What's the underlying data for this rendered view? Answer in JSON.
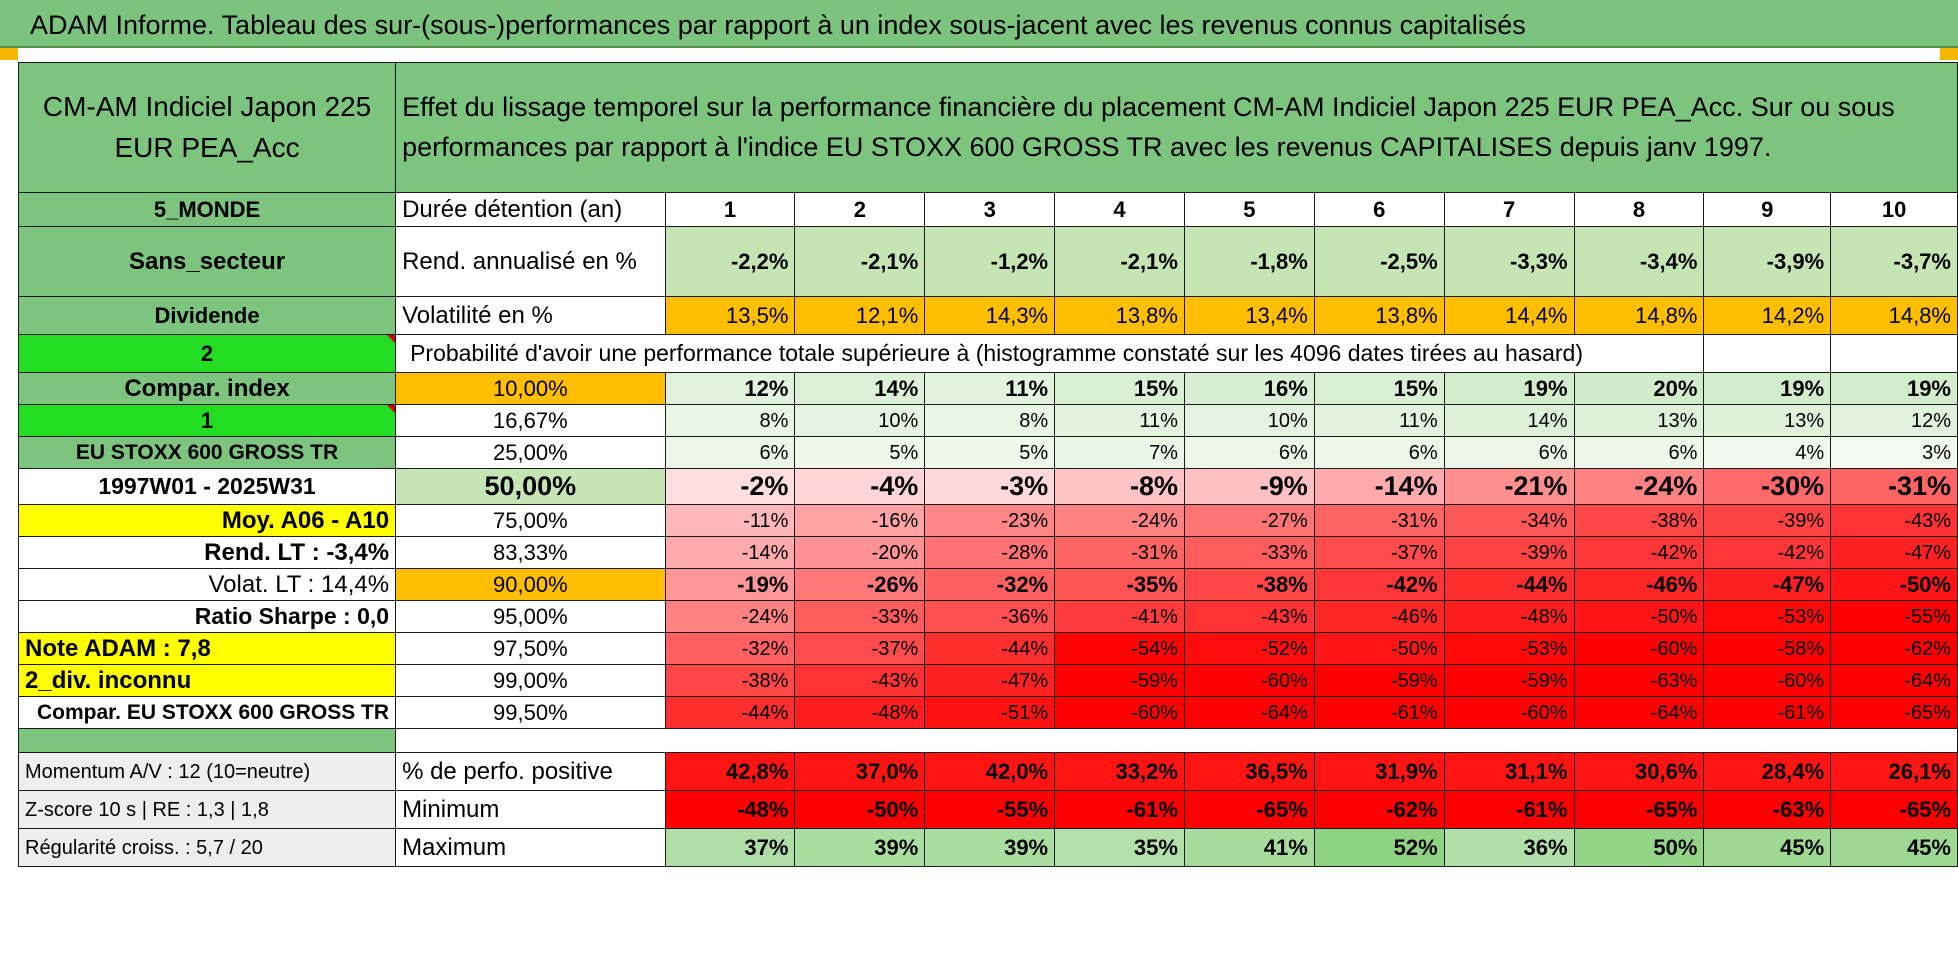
{
  "title": "ADAM Informe. Tableau des sur-(sous-)performances par rapport à un index sous-jacent avec les revenus connus capitalisés",
  "fund": {
    "name": "CM-AM Indiciel Japon 225 EUR PEA_Acc"
  },
  "description": "Effet du lissage temporel sur la performance financière du placement CM-AM Indiciel Japon 225 EUR PEA_Acc. Sur ou sous performances par rapport à l'indice EU STOXX 600 GROSS TR avec les revenus CAPITALISES depuis janv 1997.",
  "left": {
    "zone": "5_MONDE",
    "sector": "Sans_secteur",
    "dividend": "Dividende",
    "dividend_value": "2",
    "compar_index": "Compar. index",
    "compar_value": "1",
    "index_name": "EU STOXX 600 GROSS TR",
    "period": "1997W01 - 2025W31",
    "avg": "Moy. A06 - A10",
    "rend_lt": "Rend. LT :    -3,4%",
    "volat_lt": "Volat. LT :    14,4%",
    "sharpe": "Ratio Sharpe :     0,0",
    "note": "Note ADAM : 7,8",
    "div_unknown": "2_div. inconnu",
    "compar_name": "Compar. EU STOXX 600 GROSS TR",
    "momentum": "Momentum A/V : 12 (10=neutre)",
    "zscore": "Z-score 10 s | RE : 1,3  | 1,8",
    "regularity": "Régularité croiss. : 5,7 / 20"
  },
  "rows": {
    "duration_label": "Durée détention (an)",
    "years": [
      "1",
      "2",
      "3",
      "4",
      "5",
      "6",
      "7",
      "8",
      "9",
      "10"
    ],
    "rend_label": "Rend. annualisé en %",
    "rend": [
      "-2,2%",
      "-2,1%",
      "-1,2%",
      "-2,1%",
      "-1,8%",
      "-2,5%",
      "-3,3%",
      "-3,4%",
      "-3,9%",
      "-3,7%"
    ],
    "vol_label": "Volatilité en %",
    "vol": [
      "13,5%",
      "12,1%",
      "14,3%",
      "13,8%",
      "13,4%",
      "13,8%",
      "14,4%",
      "14,8%",
      "14,2%",
      "14,8%"
    ],
    "prob_label": "Probabilité d'avoir une performance totale supérieure à (histogramme constaté sur les 4096 dates tirées au hasard)"
  },
  "quantiles": [
    {
      "p": "10,00%",
      "v": [
        "12%",
        "14%",
        "11%",
        "15%",
        "16%",
        "15%",
        "19%",
        "20%",
        "19%",
        "19%"
      ]
    },
    {
      "p": "16,67%",
      "v": [
        "8%",
        "10%",
        "8%",
        "11%",
        "10%",
        "11%",
        "14%",
        "13%",
        "13%",
        "12%"
      ]
    },
    {
      "p": "25,00%",
      "v": [
        "6%",
        "5%",
        "5%",
        "7%",
        "6%",
        "6%",
        "6%",
        "6%",
        "4%",
        "3%"
      ]
    },
    {
      "p": "50,00%",
      "v": [
        "-2%",
        "-4%",
        "-3%",
        "-8%",
        "-9%",
        "-14%",
        "-21%",
        "-24%",
        "-30%",
        "-31%"
      ]
    },
    {
      "p": "75,00%",
      "v": [
        "-11%",
        "-16%",
        "-23%",
        "-24%",
        "-27%",
        "-31%",
        "-34%",
        "-38%",
        "-39%",
        "-43%"
      ]
    },
    {
      "p": "83,33%",
      "v": [
        "-14%",
        "-20%",
        "-28%",
        "-31%",
        "-33%",
        "-37%",
        "-39%",
        "-42%",
        "-42%",
        "-47%"
      ]
    },
    {
      "p": "90,00%",
      "v": [
        "-19%",
        "-26%",
        "-32%",
        "-35%",
        "-38%",
        "-42%",
        "-44%",
        "-46%",
        "-47%",
        "-50%"
      ]
    },
    {
      "p": "95,00%",
      "v": [
        "-24%",
        "-33%",
        "-36%",
        "-41%",
        "-43%",
        "-46%",
        "-48%",
        "-50%",
        "-53%",
        "-55%"
      ]
    },
    {
      "p": "97,50%",
      "v": [
        "-32%",
        "-37%",
        "-44%",
        "-54%",
        "-52%",
        "-50%",
        "-53%",
        "-60%",
        "-58%",
        "-62%"
      ]
    },
    {
      "p": "99,00%",
      "v": [
        "-38%",
        "-43%",
        "-47%",
        "-59%",
        "-60%",
        "-59%",
        "-59%",
        "-63%",
        "-60%",
        "-64%"
      ]
    },
    {
      "p": "99,50%",
      "v": [
        "-44%",
        "-48%",
        "-51%",
        "-60%",
        "-64%",
        "-61%",
        "-60%",
        "-64%",
        "-61%",
        "-65%"
      ]
    }
  ],
  "stats": {
    "pos_label": "% de perfo. positive",
    "pos": [
      "42,8%",
      "37,0%",
      "42,0%",
      "33,2%",
      "36,5%",
      "31,9%",
      "31,1%",
      "30,6%",
      "28,4%",
      "26,1%"
    ],
    "min_label": "Minimum",
    "min": [
      "-48%",
      "-50%",
      "-55%",
      "-61%",
      "-65%",
      "-62%",
      "-61%",
      "-65%",
      "-63%",
      "-65%"
    ],
    "max_label": "Maximum",
    "max": [
      "37%",
      "39%",
      "39%",
      "35%",
      "41%",
      "52%",
      "36%",
      "50%",
      "45%",
      "45%"
    ]
  }
}
